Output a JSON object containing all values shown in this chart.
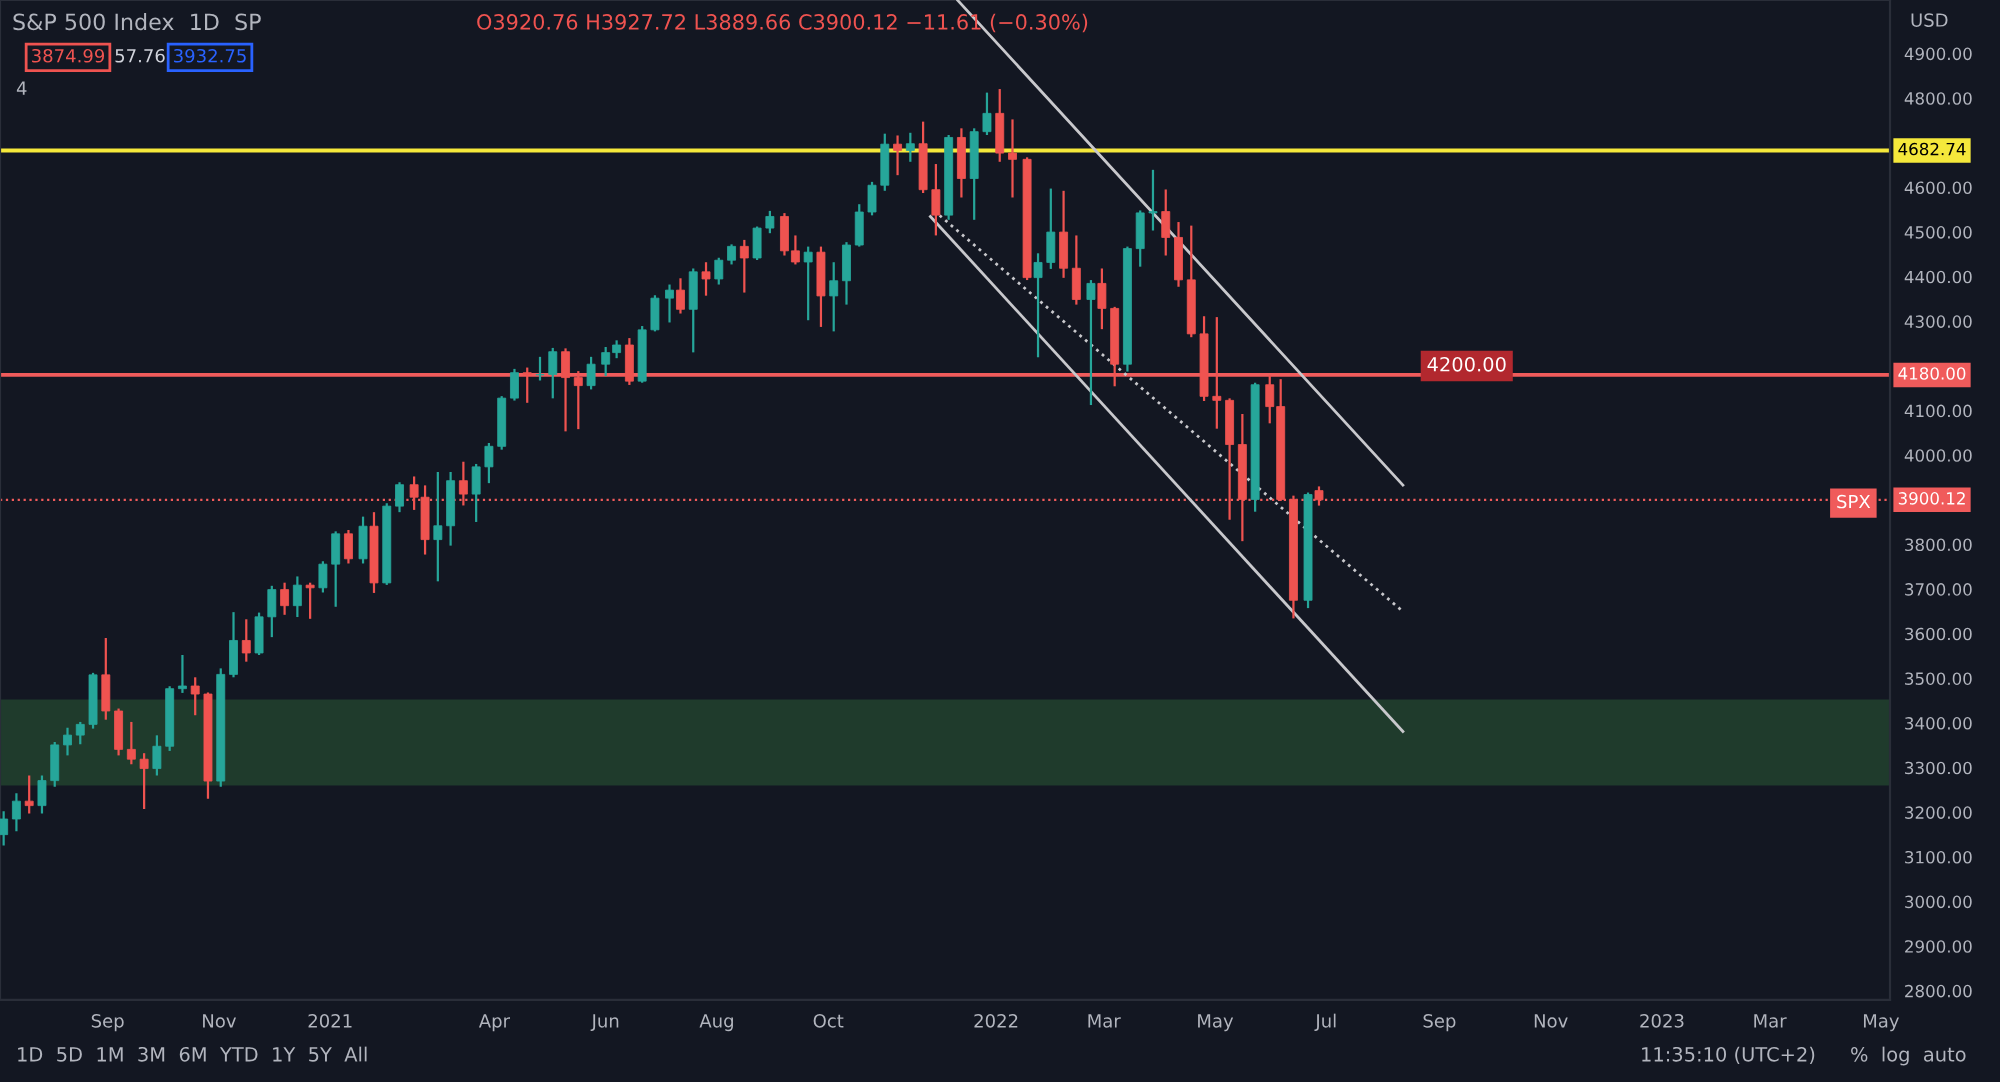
{
  "chart_data": {
    "type": "candlestick",
    "title": "S&P 500 Index  1D  SP",
    "ylabel": "USD",
    "x": [
      "2020-07-06",
      "2020-07-13",
      "2020-07-20",
      "2020-07-27",
      "2020-08-03",
      "2020-08-10",
      "2020-08-17",
      "2020-08-24",
      "2020-08-31",
      "2020-09-07",
      "2020-09-14",
      "2020-09-21",
      "2020-09-28",
      "2020-10-05",
      "2020-10-12",
      "2020-10-19",
      "2020-10-26",
      "2020-11-02",
      "2020-11-09",
      "2020-11-16",
      "2020-11-23",
      "2020-11-30",
      "2020-12-07",
      "2020-12-14",
      "2020-12-21",
      "2020-12-28",
      "2021-01-04",
      "2021-01-11",
      "2021-01-19",
      "2021-01-25",
      "2021-02-01",
      "2021-02-08",
      "2021-02-16",
      "2021-02-22",
      "2021-03-01",
      "2021-03-08",
      "2021-03-15",
      "2021-03-22",
      "2021-03-29",
      "2021-04-05",
      "2021-04-12",
      "2021-04-19",
      "2021-04-26",
      "2021-05-03",
      "2021-05-10",
      "2021-05-17",
      "2021-05-24",
      "2021-06-01",
      "2021-06-07",
      "2021-06-14",
      "2021-06-21",
      "2021-06-28",
      "2021-07-06",
      "2021-07-12",
      "2021-07-19",
      "2021-07-26",
      "2021-08-02",
      "2021-08-09",
      "2021-08-16",
      "2021-08-23",
      "2021-08-30",
      "2021-09-07",
      "2021-09-13",
      "2021-09-20",
      "2021-09-27",
      "2021-10-04",
      "2021-10-11",
      "2021-10-18",
      "2021-10-25",
      "2021-11-01",
      "2021-11-08",
      "2021-11-15",
      "2021-11-22",
      "2021-11-29",
      "2021-12-06",
      "2021-12-13",
      "2021-12-20",
      "2021-12-27",
      "2022-01-03",
      "2022-01-10",
      "2022-01-18",
      "2022-01-24",
      "2022-01-31",
      "2022-02-07",
      "2022-02-14",
      "2022-02-22",
      "2022-02-28",
      "2022-03-07",
      "2022-03-14",
      "2022-03-21",
      "2022-03-28",
      "2022-04-04",
      "2022-04-11",
      "2022-04-18",
      "2022-04-25",
      "2022-05-02",
      "2022-05-09",
      "2022-05-16",
      "2022-05-23",
      "2022-05-31",
      "2022-06-06",
      "2022-06-13",
      "2022-06-21",
      "2022-06-27"
    ],
    "ohlc": [
      [
        3150,
        3200,
        3128,
        3185
      ],
      [
        3185,
        3240,
        3160,
        3225
      ],
      [
        3225,
        3280,
        3200,
        3215
      ],
      [
        3215,
        3280,
        3200,
        3271
      ],
      [
        3271,
        3355,
        3260,
        3351
      ],
      [
        3351,
        3387,
        3330,
        3373
      ],
      [
        3373,
        3400,
        3355,
        3397
      ],
      [
        3397,
        3510,
        3390,
        3508
      ],
      [
        3508,
        3588,
        3410,
        3427
      ],
      [
        3427,
        3430,
        3330,
        3341
      ],
      [
        3341,
        3400,
        3310,
        3319
      ],
      [
        3319,
        3330,
        3210,
        3298
      ],
      [
        3298,
        3370,
        3285,
        3348
      ],
      [
        3348,
        3480,
        3340,
        3477
      ],
      [
        3477,
        3550,
        3470,
        3483
      ],
      [
        3483,
        3500,
        3420,
        3465
      ],
      [
        3465,
        3466,
        3233,
        3270
      ],
      [
        3270,
        3520,
        3260,
        3509
      ],
      [
        3509,
        3646,
        3505,
        3585
      ],
      [
        3585,
        3630,
        3540,
        3557
      ],
      [
        3557,
        3645,
        3555,
        3638
      ],
      [
        3638,
        3705,
        3595,
        3699
      ],
      [
        3699,
        3712,
        3645,
        3663
      ],
      [
        3663,
        3726,
        3640,
        3709
      ],
      [
        3709,
        3712,
        3636,
        3703
      ],
      [
        3703,
        3760,
        3695,
        3756
      ],
      [
        3756,
        3827,
        3663,
        3824
      ],
      [
        3824,
        3830,
        3760,
        3768
      ],
      [
        3768,
        3860,
        3760,
        3841
      ],
      [
        3841,
        3870,
        3694,
        3714
      ],
      [
        3714,
        3890,
        3712,
        3886
      ],
      [
        3886,
        3937,
        3875,
        3934
      ],
      [
        3934,
        3950,
        3880,
        3906
      ],
      [
        3906,
        3930,
        3780,
        3811
      ],
      [
        3811,
        3960,
        3720,
        3842
      ],
      [
        3842,
        3960,
        3800,
        3943
      ],
      [
        3943,
        3983,
        3890,
        3913
      ],
      [
        3913,
        3978,
        3853,
        3974
      ],
      [
        3974,
        4025,
        3940,
        4020
      ],
      [
        4020,
        4130,
        4015,
        4128
      ],
      [
        4128,
        4191,
        4125,
        4185
      ],
      [
        4185,
        4194,
        4120,
        4180
      ],
      [
        4180,
        4218,
        4170,
        4181
      ],
      [
        4181,
        4238,
        4130,
        4232
      ],
      [
        4232,
        4237,
        4056,
        4174
      ],
      [
        4174,
        4186,
        4061,
        4156
      ],
      [
        4156,
        4218,
        4150,
        4204
      ],
      [
        4204,
        4240,
        4180,
        4230
      ],
      [
        4230,
        4255,
        4220,
        4247
      ],
      [
        4247,
        4260,
        4160,
        4166
      ],
      [
        4166,
        4287,
        4165,
        4281
      ],
      [
        4281,
        4356,
        4280,
        4352
      ],
      [
        4352,
        4380,
        4300,
        4370
      ],
      [
        4370,
        4394,
        4320,
        4327
      ],
      [
        4327,
        4416,
        4233,
        4411
      ],
      [
        4411,
        4430,
        4360,
        4395
      ],
      [
        4395,
        4440,
        4385,
        4437
      ],
      [
        4437,
        4470,
        4430,
        4468
      ],
      [
        4468,
        4480,
        4367,
        4442
      ],
      [
        4442,
        4510,
        4440,
        4509
      ],
      [
        4509,
        4545,
        4500,
        4535
      ],
      [
        4535,
        4540,
        4450,
        4458
      ],
      [
        4458,
        4490,
        4430,
        4433
      ],
      [
        4433,
        4465,
        4305,
        4455
      ],
      [
        4455,
        4465,
        4290,
        4357
      ],
      [
        4357,
        4430,
        4280,
        4391
      ],
      [
        4391,
        4475,
        4340,
        4471
      ],
      [
        4471,
        4560,
        4470,
        4545
      ],
      [
        4545,
        4610,
        4540,
        4605
      ],
      [
        4605,
        4718,
        4595,
        4697
      ],
      [
        4697,
        4714,
        4630,
        4683
      ],
      [
        4683,
        4720,
        4660,
        4698
      ],
      [
        4698,
        4745,
        4590,
        4595
      ],
      [
        4595,
        4650,
        4495,
        4538
      ],
      [
        4538,
        4715,
        4530,
        4712
      ],
      [
        4712,
        4730,
        4580,
        4620
      ],
      [
        4620,
        4730,
        4530,
        4725
      ],
      [
        4725,
        4810,
        4720,
        4766
      ],
      [
        4766,
        4818,
        4660,
        4677
      ],
      [
        4677,
        4750,
        4580,
        4663
      ],
      [
        4663,
        4665,
        4395,
        4398
      ],
      [
        4398,
        4450,
        4222,
        4432
      ],
      [
        4432,
        4595,
        4420,
        4500
      ],
      [
        4500,
        4590,
        4400,
        4419
      ],
      [
        4419,
        4490,
        4340,
        4349
      ],
      [
        4349,
        4390,
        4115,
        4385
      ],
      [
        4385,
        4416,
        4285,
        4329
      ],
      [
        4329,
        4330,
        4157,
        4204
      ],
      [
        4204,
        4465,
        4190,
        4463
      ],
      [
        4463,
        4546,
        4425,
        4543
      ],
      [
        4543,
        4637,
        4506,
        4546
      ],
      [
        4546,
        4593,
        4450,
        4488
      ],
      [
        4488,
        4520,
        4380,
        4393
      ],
      [
        4393,
        4512,
        4267,
        4272
      ],
      [
        4272,
        4309,
        4124,
        4132
      ],
      [
        4132,
        4307,
        4062,
        4123
      ],
      [
        4123,
        4125,
        3858,
        4024
      ],
      [
        4024,
        4090,
        3810,
        3901
      ],
      [
        3901,
        4160,
        3876,
        4158
      ],
      [
        4158,
        4177,
        4074,
        4109
      ],
      [
        4109,
        4168,
        3900,
        3901
      ],
      [
        3901,
        3907,
        3637,
        3675
      ],
      [
        3675,
        3914,
        3660,
        3912
      ],
      [
        3920.76,
        3927.72,
        3889.66,
        3900.12
      ]
    ],
    "colors": [
      "#26a69a",
      "#26a69a",
      "#ef5350",
      "#26a69a",
      "#26a69a",
      "#26a69a",
      "#26a69a",
      "#26a69a",
      "#ef5350",
      "#ef5350",
      "#ef5350",
      "#ef5350",
      "#26a69a",
      "#26a69a",
      "#26a69a",
      "#ef5350",
      "#ef5350",
      "#26a69a",
      "#26a69a",
      "#ef5350",
      "#26a69a",
      "#26a69a",
      "#ef5350",
      "#26a69a",
      "#ef5350",
      "#26a69a",
      "#26a69a",
      "#ef5350",
      "#26a69a",
      "#ef5350",
      "#26a69a",
      "#26a69a",
      "#ef5350",
      "#ef5350",
      "#26a69a",
      "#26a69a",
      "#ef5350",
      "#26a69a",
      "#26a69a",
      "#26a69a",
      "#26a69a",
      "#ef5350",
      "#26a69a",
      "#26a69a",
      "#ef5350",
      "#ef5350",
      "#26a69a",
      "#26a69a",
      "#26a69a",
      "#ef5350",
      "#26a69a",
      "#26a69a",
      "#26a69a",
      "#ef5350",
      "#26a69a",
      "#ef5350",
      "#26a69a",
      "#26a69a",
      "#ef5350",
      "#26a69a",
      "#26a69a",
      "#ef5350",
      "#ef5350",
      "#26a69a",
      "#ef5350",
      "#26a69a",
      "#26a69a",
      "#26a69a",
      "#26a69a",
      "#26a69a",
      "#ef5350",
      "#26a69a",
      "#ef5350",
      "#ef5350",
      "#26a69a",
      "#ef5350",
      "#26a69a",
      "#26a69a",
      "#ef5350",
      "#ef5350",
      "#ef5350",
      "#26a69a",
      "#26a69a",
      "#ef5350",
      "#ef5350",
      "#26a69a",
      "#ef5350",
      "#ef5350",
      "#26a69a",
      "#26a69a",
      "#26a69a",
      "#ef5350",
      "#ef5350",
      "#ef5350",
      "#ef5350",
      "#ef5350",
      "#ef5350",
      "#ef5350",
      "#26a69a",
      "#ef5350",
      "#ef5350",
      "#ef5350",
      "#26a69a",
      "#ef5350"
    ],
    "series": [
      {
        "type": "line",
        "x": [
          "2021-12-11",
          "2022-08-12"
        ],
        "values": [
          5019,
          3933
        ],
        "color": "#c8c8cc",
        "line_style": "solid"
      },
      {
        "type": "line",
        "x": [
          "2021-11-28",
          "2022-08-12"
        ],
        "values": [
          4548,
          3650
        ],
        "color": "#c8c8cc",
        "line_style": "dotted"
      },
      {
        "type": "line",
        "x": [
          "2021-11-26",
          "2022-08-12"
        ],
        "values": [
          4535,
          3381
        ],
        "color": "#c8c8cc",
        "line_style": "solid"
      }
    ],
    "ref_lines": [
      {
        "axis": "y",
        "value": 4682.74,
        "label": "4682.74",
        "color": "#f5e83b",
        "line_style": "solid"
      },
      {
        "axis": "y",
        "value": 4180,
        "label": "4180.00",
        "color": "#f05b5b",
        "line_style": "solid"
      },
      {
        "axis": "y",
        "value": 3900.12,
        "label": "3900.12",
        "color": "#f05b5b",
        "line_style": "dotted"
      }
    ],
    "bands": [
      {
        "axis": "y",
        "from": 3260,
        "to": 3453,
        "color": "#1f3b2c"
      }
    ],
    "xlim": [
      "2020-07-04",
      "2023-05-06"
    ],
    "ylim": [
      2780,
      5020
    ],
    "xticks": [
      {
        "value": "2020-09-01",
        "label": "Sep"
      },
      {
        "value": "2020-11-01",
        "label": "Nov"
      },
      {
        "value": "2021-01-01",
        "label": "2021"
      },
      {
        "value": "2021-04-01",
        "label": "Apr"
      },
      {
        "value": "2021-06-01",
        "label": "Jun"
      },
      {
        "value": "2021-08-01",
        "label": "Aug"
      },
      {
        "value": "2021-10-01",
        "label": "Oct"
      },
      {
        "value": "2022-01-01",
        "label": "2022"
      },
      {
        "value": "2022-03-01",
        "label": "Mar"
      },
      {
        "value": "2022-05-01",
        "label": "May"
      },
      {
        "value": "2022-07-01",
        "label": "Jul"
      },
      {
        "value": "2022-09-01",
        "label": "Sep"
      },
      {
        "value": "2022-11-01",
        "label": "Nov"
      },
      {
        "value": "2023-01-01",
        "label": "2023"
      },
      {
        "value": "2023-03-01",
        "label": "Mar"
      },
      {
        "value": "2023-05-01",
        "label": "May"
      }
    ],
    "yticks": [
      {
        "value": 2800,
        "label": "2800.00"
      },
      {
        "value": 2900,
        "label": "2900.00"
      },
      {
        "value": 3000,
        "label": "3000.00"
      },
      {
        "value": 3100,
        "label": "3100.00"
      },
      {
        "value": 3200,
        "label": "3200.00"
      },
      {
        "value": 3300,
        "label": "3300.00"
      },
      {
        "value": 3400,
        "label": "3400.00"
      },
      {
        "value": 3500,
        "label": "3500.00"
      },
      {
        "value": 3600,
        "label": "3600.00"
      },
      {
        "value": 3700,
        "label": "3700.00"
      },
      {
        "value": 3800,
        "label": "3800.00"
      },
      {
        "value": 4000,
        "label": "4000.00"
      },
      {
        "value": 4100,
        "label": "4100.00"
      },
      {
        "value": 4300,
        "label": "4300.00"
      },
      {
        "value": 4400,
        "label": "4400.00"
      },
      {
        "value": 4500,
        "label": "4500.00"
      },
      {
        "value": 4600,
        "label": "4600.00"
      },
      {
        "value": 4800,
        "label": "4800.00"
      },
      {
        "value": 4900,
        "label": "4900.00"
      }
    ],
    "annotations": [
      "O3920.76 H3927.72 L3889.66 C3900.12 −11.61 (−0.30%)",
      "3874.99",
      "57.76",
      "3932.75",
      "4",
      "1D  5D  1M  3M  6M  YTD  1Y  5Y  All",
      "11:35:10 (UTC+2)",
      "%  log  auto",
      "SPX",
      {
        "text": "4200.00",
        "x": "2022-09-16",
        "y": 4200
      }
    ],
    "grid": false,
    "legend": false
  }
}
